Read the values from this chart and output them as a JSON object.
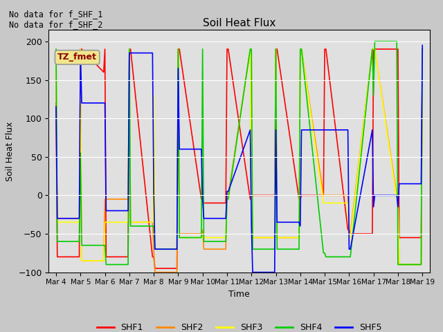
{
  "title": "Soil Heat Flux",
  "xlabel": "Time",
  "ylabel": "Soil Heat Flux",
  "ylim": [
    -100,
    215
  ],
  "yticks": [
    -100,
    -50,
    0,
    50,
    100,
    150,
    200
  ],
  "annotation_text": "No data for f_SHF_1\nNo data for f_SHF_2",
  "box_label": "TZ_fmet",
  "x_tick_labels": [
    "Mar 4",
    "Mar 5",
    "Mar 6",
    "Mar 7",
    "Mar 8",
    "Mar 9",
    "Mar 10",
    "Mar 11",
    "Mar 12",
    "Mar 13",
    "Mar 14",
    "Mar 15",
    "Mar 16",
    "Mar 17",
    "Mar 18",
    "Mar 19"
  ],
  "legend_entries": [
    "SHF1",
    "SHF2",
    "SHF3",
    "SHF4",
    "SHF5"
  ],
  "legend_colors": [
    "#ff0000",
    "#ff8800",
    "#ffff00",
    "#00cc00",
    "#0000ff"
  ],
  "background_color": "#c8c8c8",
  "plot_bg_color": "#e0e0e0",
  "series": {
    "SHF1": {
      "color": "#ff0000",
      "x": [
        0.0,
        0.05,
        0.95,
        1.0,
        1.05,
        1.95,
        2.0,
        2.05,
        2.95,
        3.0,
        3.05,
        3.95,
        4.0,
        4.05,
        4.95,
        5.0,
        5.05,
        5.95,
        6.0,
        6.05,
        6.95,
        7.0,
        7.05,
        7.95,
        8.0,
        8.05,
        8.95,
        9.0,
        9.05,
        9.95,
        10.0,
        10.05,
        10.95,
        11.0,
        11.05,
        11.95,
        12.0,
        12.05,
        12.95,
        13.0,
        13.05,
        13.95,
        14.0,
        14.05,
        14.95,
        15.0
      ],
      "y": [
        120,
        -80,
        -80,
        190,
        190,
        160,
        190,
        -80,
        -80,
        190,
        190,
        -80,
        -80,
        -95,
        -95,
        190,
        190,
        -5,
        -5,
        -10,
        -10,
        190,
        190,
        -5,
        -5,
        0,
        0,
        190,
        190,
        -5,
        -5,
        0,
        0,
        190,
        190,
        -45,
        -45,
        -50,
        -50,
        190,
        190,
        190,
        190,
        -55,
        -55,
        190
      ]
    },
    "SHF2": {
      "color": "#ff8800",
      "x": [
        0.0,
        0.05,
        0.95,
        1.0,
        1.05,
        1.95,
        2.0,
        2.05,
        2.95,
        3.0,
        3.05,
        3.95,
        4.0,
        4.05,
        4.95,
        5.0,
        5.05,
        5.95,
        6.0,
        6.05,
        6.95,
        7.0,
        7.05,
        7.95,
        8.0,
        8.05,
        8.95,
        9.0,
        9.05,
        9.95,
        10.0,
        10.05,
        10.95,
        11.0,
        11.05,
        11.95,
        12.0,
        12.05,
        12.95,
        13.0,
        13.05,
        13.95,
        14.0,
        14.05,
        14.95,
        15.0
      ],
      "y": [
        190,
        -30,
        -30,
        190,
        -85,
        -85,
        -5,
        -5,
        -5,
        190,
        -35,
        -35,
        -70,
        -100,
        -100,
        190,
        -50,
        -50,
        -45,
        -70,
        -70,
        0,
        0,
        190,
        25,
        -55,
        -55,
        190,
        -55,
        -55,
        190,
        190,
        0,
        0,
        0,
        0,
        -50,
        -50,
        190,
        190,
        190,
        0,
        0,
        -90,
        -90,
        190
      ]
    },
    "SHF3": {
      "color": "#ffff00",
      "x": [
        0.0,
        0.05,
        0.95,
        1.0,
        1.05,
        1.95,
        2.0,
        2.05,
        2.95,
        3.0,
        3.05,
        3.95,
        4.0,
        4.05,
        4.95,
        5.0,
        5.05,
        5.95,
        6.0,
        6.05,
        6.95,
        7.0,
        7.05,
        7.95,
        8.0,
        8.05,
        8.95,
        9.0,
        9.05,
        9.95,
        10.0,
        10.05,
        10.95,
        11.0,
        11.05,
        11.95,
        12.0,
        12.05,
        12.95,
        13.0,
        13.05,
        13.95,
        14.0,
        14.05,
        14.95,
        15.0
      ],
      "y": [
        190,
        -35,
        -35,
        190,
        -85,
        -85,
        -35,
        -35,
        -35,
        190,
        -35,
        -35,
        130,
        -70,
        -70,
        190,
        -55,
        -55,
        -55,
        -55,
        -55,
        -5,
        -5,
        190,
        -5,
        -55,
        -55,
        190,
        -55,
        -55,
        190,
        190,
        -10,
        -10,
        -10,
        -10,
        -55,
        -55,
        190,
        190,
        190,
        -5,
        -5,
        -90,
        -90,
        190
      ]
    },
    "SHF4": {
      "color": "#00cc00",
      "x": [
        0.0,
        0.05,
        0.95,
        1.0,
        1.05,
        1.95,
        2.0,
        2.05,
        2.95,
        3.0,
        3.05,
        3.95,
        4.0,
        4.05,
        4.95,
        5.0,
        5.05,
        5.95,
        6.0,
        6.05,
        6.95,
        7.0,
        7.05,
        7.95,
        8.0,
        8.05,
        8.95,
        9.0,
        9.05,
        9.95,
        10.0,
        10.05,
        10.95,
        11.0,
        11.05,
        11.95,
        12.0,
        12.05,
        12.95,
        13.0,
        13.05,
        13.95,
        14.0,
        14.05,
        14.95,
        15.0
      ],
      "y": [
        190,
        -60,
        -60,
        55,
        -65,
        -65,
        -65,
        -90,
        -90,
        190,
        -40,
        -40,
        -40,
        -70,
        -70,
        190,
        -55,
        -55,
        190,
        -60,
        -60,
        -5,
        -5,
        190,
        190,
        -70,
        -70,
        190,
        -70,
        -70,
        190,
        190,
        -75,
        -75,
        -80,
        -80,
        -80,
        -80,
        190,
        130,
        200,
        200,
        -90,
        -90,
        -90,
        190
      ]
    },
    "SHF5": {
      "color": "#0000ff",
      "x": [
        0.0,
        0.05,
        0.95,
        1.0,
        1.05,
        1.95,
        2.0,
        2.05,
        2.95,
        3.0,
        3.05,
        3.95,
        4.0,
        4.05,
        4.95,
        5.0,
        5.05,
        5.95,
        6.0,
        6.05,
        6.95,
        7.0,
        7.05,
        7.95,
        8.0,
        8.05,
        8.95,
        9.0,
        9.05,
        9.95,
        10.0,
        10.05,
        10.95,
        11.0,
        11.05,
        11.95,
        12.0,
        12.05,
        12.95,
        13.0,
        13.05,
        13.95,
        14.0,
        14.05,
        14.95,
        15.0
      ],
      "y": [
        115,
        -30,
        -30,
        185,
        120,
        120,
        120,
        -20,
        -20,
        185,
        185,
        185,
        5,
        -70,
        -70,
        165,
        60,
        60,
        -5,
        -30,
        -30,
        5,
        5,
        85,
        -40,
        -100,
        -100,
        85,
        -35,
        -35,
        -40,
        85,
        85,
        85,
        85,
        85,
        -70,
        -70,
        85,
        -15,
        0,
        0,
        -15,
        15,
        15,
        195
      ]
    }
  }
}
